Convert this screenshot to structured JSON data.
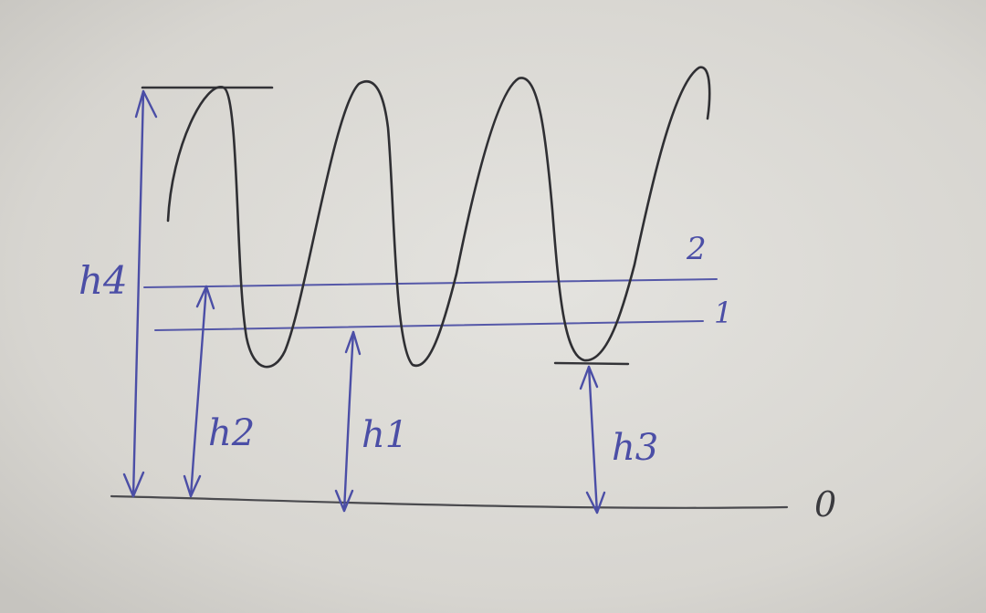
{
  "labels": {
    "h4": "h4",
    "h2": "h2",
    "h1": "h1",
    "h3": "h3",
    "line2": "2",
    "line1": "1",
    "ground": "0"
  },
  "colors": {
    "paper": "#d9d7d2",
    "pencil": "#3a3a3e",
    "blue_ink": "#4b4ea6"
  }
}
